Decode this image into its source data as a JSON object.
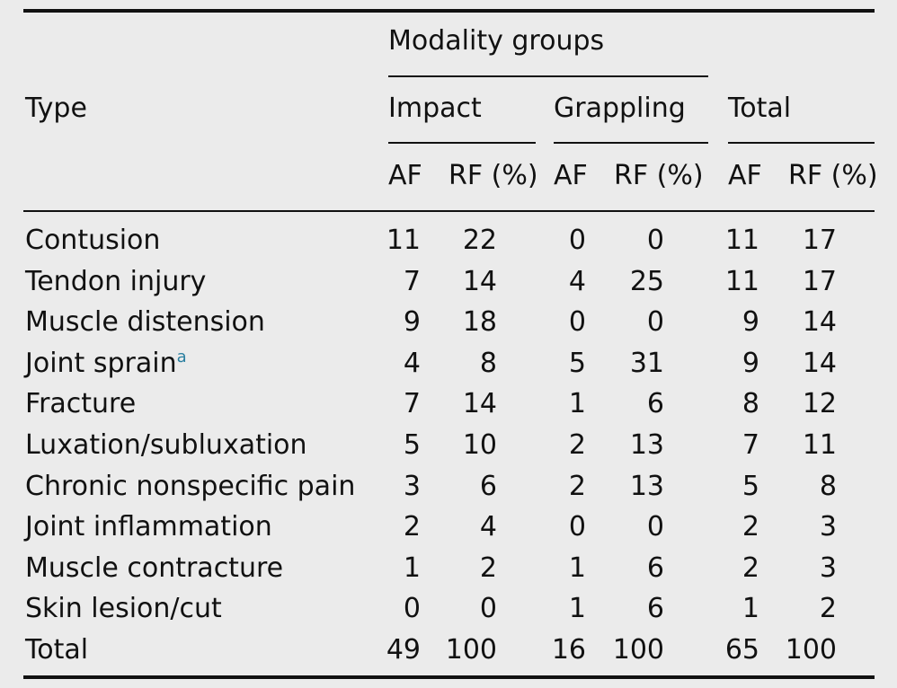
{
  "header": {
    "type": "Type",
    "spanner": "Modality groups",
    "groups": [
      "Impact",
      "Grappling",
      "Total"
    ],
    "sub": [
      "AF",
      "RF (%)",
      "AF",
      "RF (%)",
      "AF",
      "RF (%)"
    ]
  },
  "rows": [
    {
      "type": "Contusion",
      "note": "",
      "v": [
        "11",
        "22",
        "0",
        "0",
        "11",
        "17"
      ]
    },
    {
      "type": "Tendon injury",
      "note": "",
      "v": [
        "7",
        "14",
        "4",
        "25",
        "11",
        "17"
      ]
    },
    {
      "type": "Muscle distension",
      "note": "",
      "v": [
        "9",
        "18",
        "0",
        "0",
        "9",
        "14"
      ]
    },
    {
      "type": "Joint sprain",
      "note": "a",
      "v": [
        "4",
        "8",
        "5",
        "31",
        "9",
        "14"
      ]
    },
    {
      "type": "Fracture",
      "note": "",
      "v": [
        "7",
        "14",
        "1",
        "6",
        "8",
        "12"
      ]
    },
    {
      "type": "Luxation/subluxation",
      "note": "",
      "v": [
        "5",
        "10",
        "2",
        "13",
        "7",
        "11"
      ]
    },
    {
      "type": "Chronic nonspecific pain",
      "note": "",
      "v": [
        "3",
        "6",
        "2",
        "13",
        "5",
        "8"
      ]
    },
    {
      "type": "Joint inflammation",
      "note": "",
      "v": [
        "2",
        "4",
        "0",
        "0",
        "2",
        "3"
      ]
    },
    {
      "type": "Muscle contracture",
      "note": "",
      "v": [
        "1",
        "2",
        "1",
        "6",
        "2",
        "3"
      ]
    },
    {
      "type": "Skin lesion/cut",
      "note": "",
      "v": [
        "0",
        "0",
        "1",
        "6",
        "1",
        "2"
      ]
    },
    {
      "type": "Total",
      "note": "",
      "v": [
        "49",
        "100",
        "16",
        "100",
        "65",
        "100"
      ]
    }
  ]
}
